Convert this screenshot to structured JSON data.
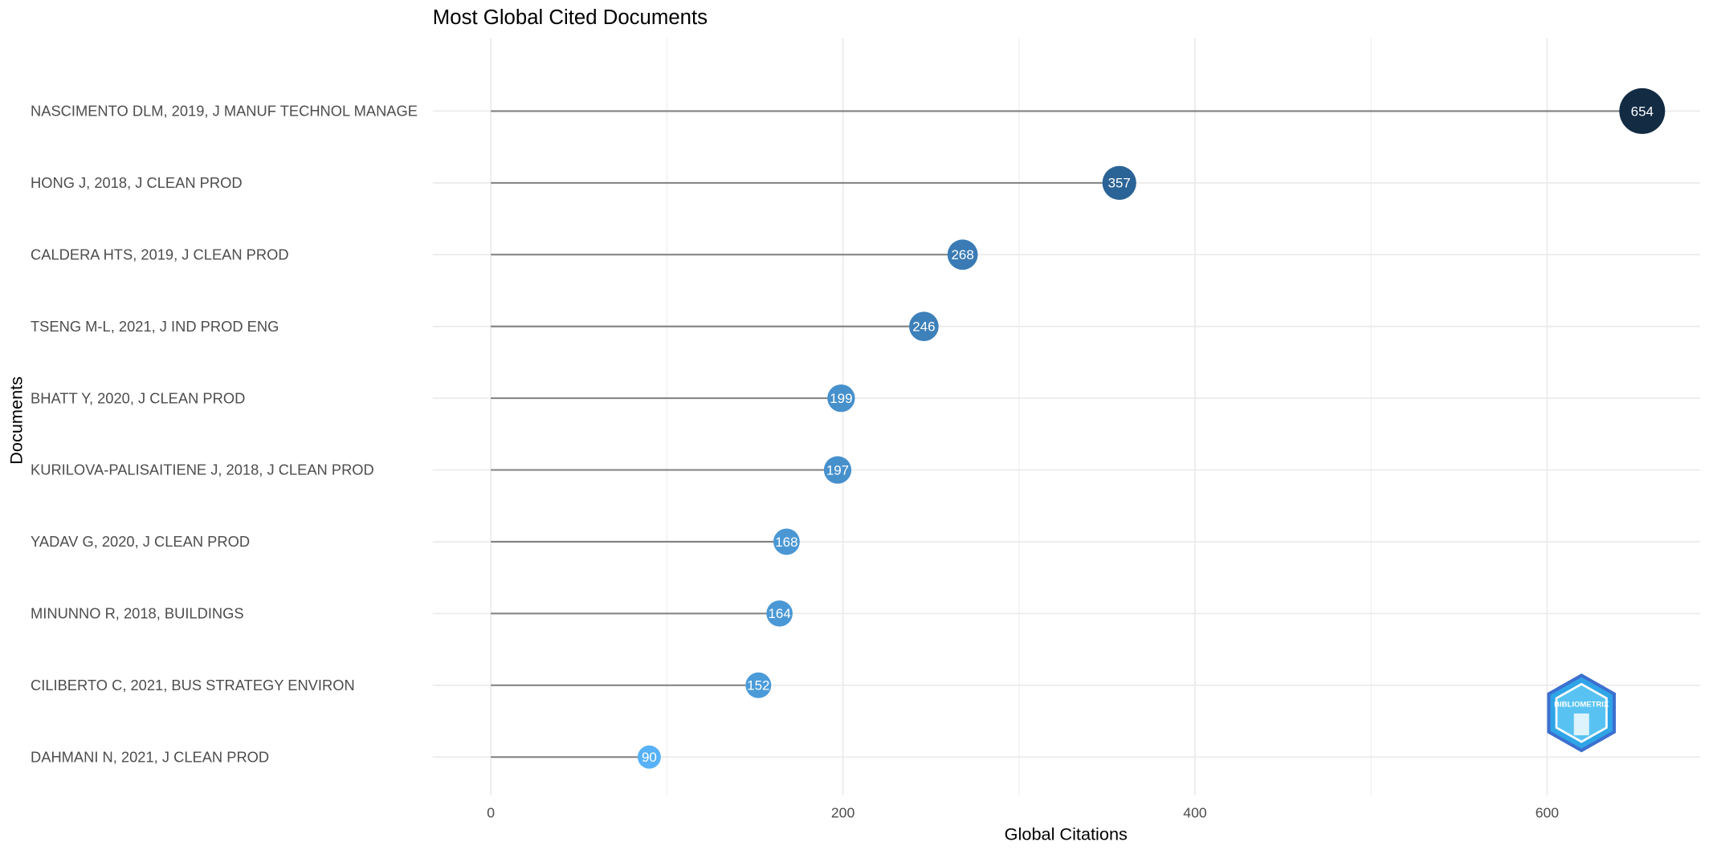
{
  "chart_data": {
    "type": "lollipop",
    "title": "Most Global Cited Documents",
    "x_label": "Global Citations",
    "y_label": "Documents",
    "categories": [
      "NASCIMENTO DLM, 2019, J MANUF TECHNOL MANAGE",
      "HONG J, 2018, J CLEAN PROD",
      "CALDERA HTS, 2019, J CLEAN PROD",
      "TSENG M-L, 2021, J IND PROD ENG",
      "BHATT Y, 2020, J CLEAN PROD",
      "KURILOVA-PALISAITIENE J, 2018, J CLEAN PROD",
      "YADAV G, 2020, J CLEAN PROD",
      "MINUNNO R, 2018, BUILDINGS",
      "CILIBERTO C, 2021, BUS STRATEGY ENVIRON",
      "DAHMANI N, 2021, J CLEAN PROD"
    ],
    "values": [
      654,
      357,
      268,
      246,
      199,
      197,
      168,
      164,
      152,
      90
    ],
    "colors": [
      "#132b43",
      "#2a6396",
      "#3a7bb5",
      "#3d80ba",
      "#4690cc",
      "#4690cc",
      "#4a97d4",
      "#4a98d5",
      "#4b9bd9",
      "#56b1f7"
    ],
    "xlim": [
      -33,
      687
    ],
    "xticks": [
      0,
      200,
      400,
      600
    ],
    "minor_xticks": [
      100,
      300,
      500
    ],
    "grid": true,
    "logo_text": "BIBLIOMETRIX"
  }
}
